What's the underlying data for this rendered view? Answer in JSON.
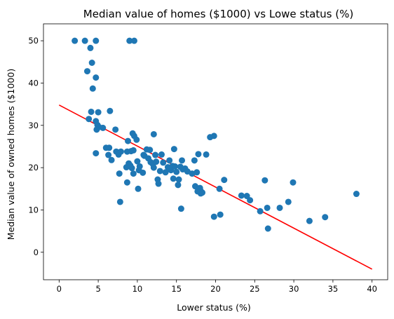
{
  "chart_data": {
    "type": "scatter",
    "title": "Median value of homes ($1000) vs Lowe status (%)",
    "xlabel": "Lower status (%)",
    "ylabel": "Median value of owned homes ($1000)",
    "xlim": [
      -2,
      42
    ],
    "ylim": [
      -6.5,
      54
    ],
    "xticks": [
      0,
      5,
      10,
      15,
      20,
      25,
      30,
      35,
      40
    ],
    "yticks": [
      0,
      10,
      20,
      30,
      40,
      50
    ],
    "grid": false,
    "colors": {
      "points": "#1f77b4",
      "line": "#ff0000"
    },
    "series": [
      {
        "type": "scatter",
        "points": [
          [
            2,
            50
          ],
          [
            3.3,
            50
          ],
          [
            4.7,
            50
          ],
          [
            9,
            50
          ],
          [
            9.6,
            50
          ],
          [
            4,
            48.3
          ],
          [
            4.2,
            44.8
          ],
          [
            3.6,
            42.8
          ],
          [
            4.7,
            41.3
          ],
          [
            4.3,
            38.7
          ],
          [
            6.5,
            33.4
          ],
          [
            5,
            33.1
          ],
          [
            4.1,
            33.2
          ],
          [
            3.8,
            31.5
          ],
          [
            4.7,
            31
          ],
          [
            4.9,
            30.1
          ],
          [
            5.1,
            29.6
          ],
          [
            4.8,
            29
          ],
          [
            5.6,
            29.4
          ],
          [
            7.2,
            29
          ],
          [
            9.4,
            28.1
          ],
          [
            9.6,
            27.5
          ],
          [
            12.1,
            27.9
          ],
          [
            9.9,
            26.6
          ],
          [
            8.8,
            26.3
          ],
          [
            19.3,
            27.2
          ],
          [
            19.8,
            27.5
          ],
          [
            6,
            24.7
          ],
          [
            6.4,
            24.7
          ],
          [
            4.7,
            23.4
          ],
          [
            6.3,
            23
          ],
          [
            6.7,
            21.8
          ],
          [
            7.3,
            23.8
          ],
          [
            7.6,
            23.1
          ],
          [
            7.9,
            23.8
          ],
          [
            8.7,
            23.8
          ],
          [
            9.2,
            23.9
          ],
          [
            9.5,
            24.1
          ],
          [
            10.8,
            23
          ],
          [
            11.2,
            24.3
          ],
          [
            11.6,
            24.2
          ],
          [
            12.3,
            23
          ],
          [
            13.1,
            23.1
          ],
          [
            14.7,
            24.4
          ],
          [
            17.8,
            23.2
          ],
          [
            18.8,
            23.1
          ],
          [
            7.7,
            18.6
          ],
          [
            7.8,
            11.9
          ],
          [
            8.7,
            16.5
          ],
          [
            8.6,
            20.1
          ],
          [
            8.9,
            21
          ],
          [
            9.1,
            20.5
          ],
          [
            9.3,
            19.9
          ],
          [
            9.5,
            18.6
          ],
          [
            10,
            21.5
          ],
          [
            10.3,
            20.3
          ],
          [
            10.2,
            19.4
          ],
          [
            10.7,
            18.8
          ],
          [
            10.1,
            15
          ],
          [
            10.9,
            22.8
          ],
          [
            11.4,
            22.2
          ],
          [
            11.7,
            21.3
          ],
          [
            12,
            20.8
          ],
          [
            12.1,
            20
          ],
          [
            12.4,
            21.4
          ],
          [
            12.6,
            17.2
          ],
          [
            12.7,
            16.2
          ],
          [
            12.9,
            19.2
          ],
          [
            13.3,
            21.2
          ],
          [
            13.6,
            18.9
          ],
          [
            13.9,
            20.1
          ],
          [
            14.1,
            21.7
          ],
          [
            14.3,
            19.4
          ],
          [
            14.5,
            20.4
          ],
          [
            14.6,
            17.4
          ],
          [
            14.8,
            20.3
          ],
          [
            15,
            19
          ],
          [
            15.2,
            15.9
          ],
          [
            15.3,
            17.2
          ],
          [
            15.5,
            20.2
          ],
          [
            15.7,
            21.7
          ],
          [
            15.8,
            19.6
          ],
          [
            16.1,
            19.8
          ],
          [
            16.4,
            19.1
          ],
          [
            15.6,
            10.3
          ],
          [
            17,
            18.6
          ],
          [
            17.3,
            21.7
          ],
          [
            17.6,
            18.9
          ],
          [
            17.4,
            15.6
          ],
          [
            17.8,
            14.9
          ],
          [
            18,
            15.2
          ],
          [
            18.1,
            13.9
          ],
          [
            17.7,
            14.4
          ],
          [
            18.1,
            14.5
          ],
          [
            18.3,
            14.1
          ],
          [
            19.8,
            8.4
          ],
          [
            20.5,
            15
          ],
          [
            20.6,
            8.9
          ],
          [
            21.1,
            17.1
          ],
          [
            23.3,
            13.4
          ],
          [
            24,
            13.3
          ],
          [
            24.4,
            12.3
          ],
          [
            25.7,
            9.7
          ],
          [
            26.3,
            17
          ],
          [
            26.6,
            10.5
          ],
          [
            26.7,
            5.6
          ],
          [
            28.2,
            10.5
          ],
          [
            29.3,
            11.9
          ],
          [
            29.9,
            16.5
          ],
          [
            32,
            7.4
          ],
          [
            34,
            8.3
          ],
          [
            38,
            13.8
          ]
        ]
      },
      {
        "type": "line",
        "points": [
          [
            0,
            34.8
          ],
          [
            40,
            -4
          ]
        ]
      }
    ]
  }
}
